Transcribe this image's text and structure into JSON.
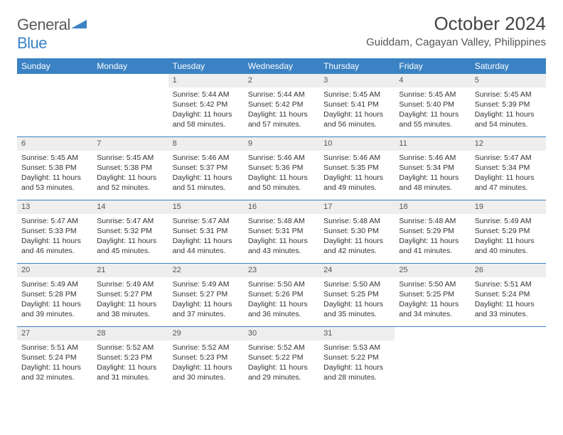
{
  "brand": {
    "text1": "General",
    "text2": "Blue"
  },
  "title": "October 2024",
  "location": "Guiddam, Cagayan Valley, Philippines",
  "colors": {
    "header_bg": "#3b82c4",
    "header_text": "#ffffff",
    "daynum_bg": "#eeeeee",
    "border": "#3b82c4",
    "body_text": "#333333",
    "page_bg": "#ffffff"
  },
  "day_labels": [
    "Sunday",
    "Monday",
    "Tuesday",
    "Wednesday",
    "Thursday",
    "Friday",
    "Saturday"
  ],
  "weeks": [
    [
      null,
      null,
      {
        "n": "1",
        "sr": "5:44 AM",
        "ss": "5:42 PM",
        "dl": "11 hours and 58 minutes."
      },
      {
        "n": "2",
        "sr": "5:44 AM",
        "ss": "5:42 PM",
        "dl": "11 hours and 57 minutes."
      },
      {
        "n": "3",
        "sr": "5:45 AM",
        "ss": "5:41 PM",
        "dl": "11 hours and 56 minutes."
      },
      {
        "n": "4",
        "sr": "5:45 AM",
        "ss": "5:40 PM",
        "dl": "11 hours and 55 minutes."
      },
      {
        "n": "5",
        "sr": "5:45 AM",
        "ss": "5:39 PM",
        "dl": "11 hours and 54 minutes."
      }
    ],
    [
      {
        "n": "6",
        "sr": "5:45 AM",
        "ss": "5:38 PM",
        "dl": "11 hours and 53 minutes."
      },
      {
        "n": "7",
        "sr": "5:45 AM",
        "ss": "5:38 PM",
        "dl": "11 hours and 52 minutes."
      },
      {
        "n": "8",
        "sr": "5:46 AM",
        "ss": "5:37 PM",
        "dl": "11 hours and 51 minutes."
      },
      {
        "n": "9",
        "sr": "5:46 AM",
        "ss": "5:36 PM",
        "dl": "11 hours and 50 minutes."
      },
      {
        "n": "10",
        "sr": "5:46 AM",
        "ss": "5:35 PM",
        "dl": "11 hours and 49 minutes."
      },
      {
        "n": "11",
        "sr": "5:46 AM",
        "ss": "5:34 PM",
        "dl": "11 hours and 48 minutes."
      },
      {
        "n": "12",
        "sr": "5:47 AM",
        "ss": "5:34 PM",
        "dl": "11 hours and 47 minutes."
      }
    ],
    [
      {
        "n": "13",
        "sr": "5:47 AM",
        "ss": "5:33 PM",
        "dl": "11 hours and 46 minutes."
      },
      {
        "n": "14",
        "sr": "5:47 AM",
        "ss": "5:32 PM",
        "dl": "11 hours and 45 minutes."
      },
      {
        "n": "15",
        "sr": "5:47 AM",
        "ss": "5:31 PM",
        "dl": "11 hours and 44 minutes."
      },
      {
        "n": "16",
        "sr": "5:48 AM",
        "ss": "5:31 PM",
        "dl": "11 hours and 43 minutes."
      },
      {
        "n": "17",
        "sr": "5:48 AM",
        "ss": "5:30 PM",
        "dl": "11 hours and 42 minutes."
      },
      {
        "n": "18",
        "sr": "5:48 AM",
        "ss": "5:29 PM",
        "dl": "11 hours and 41 minutes."
      },
      {
        "n": "19",
        "sr": "5:49 AM",
        "ss": "5:29 PM",
        "dl": "11 hours and 40 minutes."
      }
    ],
    [
      {
        "n": "20",
        "sr": "5:49 AM",
        "ss": "5:28 PM",
        "dl": "11 hours and 39 minutes."
      },
      {
        "n": "21",
        "sr": "5:49 AM",
        "ss": "5:27 PM",
        "dl": "11 hours and 38 minutes."
      },
      {
        "n": "22",
        "sr": "5:49 AM",
        "ss": "5:27 PM",
        "dl": "11 hours and 37 minutes."
      },
      {
        "n": "23",
        "sr": "5:50 AM",
        "ss": "5:26 PM",
        "dl": "11 hours and 36 minutes."
      },
      {
        "n": "24",
        "sr": "5:50 AM",
        "ss": "5:25 PM",
        "dl": "11 hours and 35 minutes."
      },
      {
        "n": "25",
        "sr": "5:50 AM",
        "ss": "5:25 PM",
        "dl": "11 hours and 34 minutes."
      },
      {
        "n": "26",
        "sr": "5:51 AM",
        "ss": "5:24 PM",
        "dl": "11 hours and 33 minutes."
      }
    ],
    [
      {
        "n": "27",
        "sr": "5:51 AM",
        "ss": "5:24 PM",
        "dl": "11 hours and 32 minutes."
      },
      {
        "n": "28",
        "sr": "5:52 AM",
        "ss": "5:23 PM",
        "dl": "11 hours and 31 minutes."
      },
      {
        "n": "29",
        "sr": "5:52 AM",
        "ss": "5:23 PM",
        "dl": "11 hours and 30 minutes."
      },
      {
        "n": "30",
        "sr": "5:52 AM",
        "ss": "5:22 PM",
        "dl": "11 hours and 29 minutes."
      },
      {
        "n": "31",
        "sr": "5:53 AM",
        "ss": "5:22 PM",
        "dl": "11 hours and 28 minutes."
      },
      null,
      null
    ]
  ],
  "labels": {
    "sunrise": "Sunrise: ",
    "sunset": "Sunset: ",
    "daylight": "Daylight: "
  }
}
